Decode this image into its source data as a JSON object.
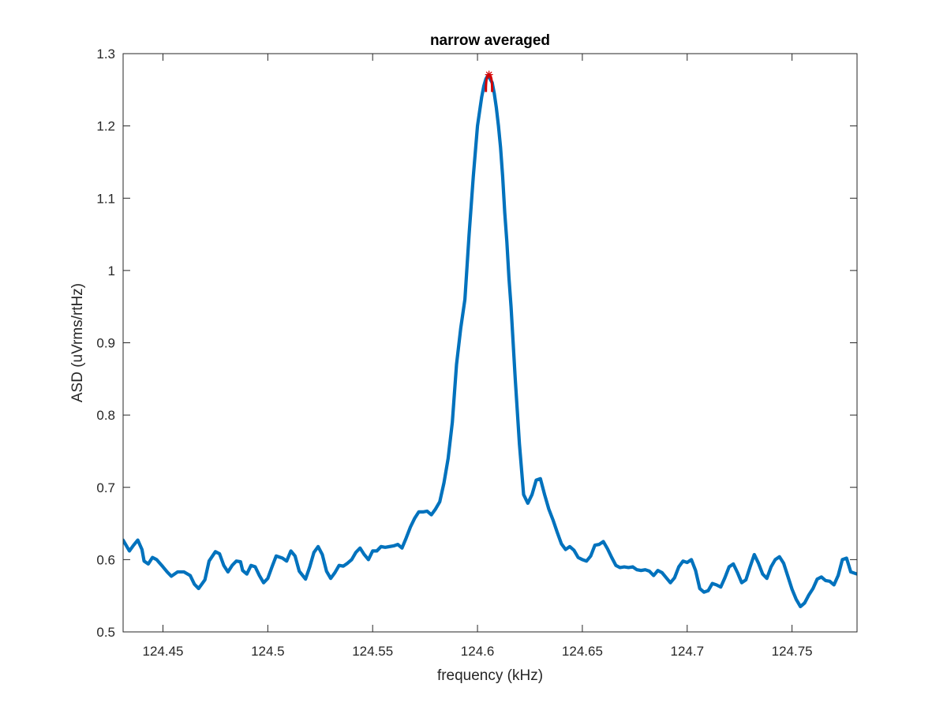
{
  "chart_data": {
    "type": "line",
    "title": "narrow averaged",
    "xlabel": "frequency (kHz)",
    "ylabel": "ASD (uVrms/rtHz)",
    "xlim": [
      124.431,
      124.781
    ],
    "ylim": [
      0.5,
      1.3
    ],
    "xticks": [
      124.45,
      124.5,
      124.55,
      124.6,
      124.65,
      124.7,
      124.75
    ],
    "xtick_labels": [
      "124.45",
      "124.5",
      "124.55",
      "124.6",
      "124.65",
      "124.7",
      "124.75"
    ],
    "yticks": [
      0.5,
      0.6,
      0.7,
      0.8,
      0.9,
      1.0,
      1.1,
      1.2,
      1.3
    ],
    "ytick_labels": [
      "0.5",
      "0.6",
      "0.7",
      "0.8",
      "0.9",
      "1",
      "1.1",
      "1.2",
      "1.3"
    ],
    "grid": false,
    "series": [
      {
        "color": "#0072BD",
        "x": [
          124.431,
          124.434,
          124.436,
          124.438,
          124.44,
          124.441,
          124.443,
          124.445,
          124.447,
          124.45,
          124.452,
          124.454,
          124.457,
          124.459,
          124.46,
          124.463,
          124.465,
          124.467,
          124.47,
          124.472,
          124.475,
          124.477,
          124.479,
          124.481,
          124.483,
          124.485,
          124.487,
          124.488,
          124.49,
          124.492,
          124.494,
          124.496,
          124.498,
          124.5,
          124.502,
          124.504,
          124.507,
          124.509,
          124.511,
          124.513,
          124.515,
          124.518,
          124.52,
          124.522,
          124.524,
          124.526,
          124.528,
          124.53,
          124.532,
          124.534,
          124.536,
          124.538,
          124.54,
          124.542,
          124.544,
          124.546,
          124.548,
          124.55,
          124.552,
          124.554,
          124.556,
          124.558,
          124.56,
          124.562,
          124.564,
          124.566,
          124.568,
          124.57,
          124.572,
          124.574,
          124.576,
          124.578,
          124.58,
          124.582,
          124.584,
          124.586,
          124.588,
          124.59,
          124.592,
          124.594,
          124.596,
          124.598,
          124.6,
          124.601,
          124.602,
          124.603,
          124.604,
          124.605,
          124.606,
          124.607,
          124.608,
          124.609,
          124.61,
          124.611,
          124.612,
          124.613,
          124.614,
          124.615,
          124.616,
          124.618,
          124.62,
          124.622,
          124.624,
          124.626,
          124.628,
          124.63,
          124.632,
          124.634,
          124.636,
          124.638,
          124.64,
          124.642,
          124.644,
          124.646,
          124.648,
          124.65,
          124.652,
          124.654,
          124.656,
          124.658,
          124.66,
          124.662,
          124.664,
          124.666,
          124.668,
          124.67,
          124.672,
          124.674,
          124.676,
          124.678,
          124.68,
          124.682,
          124.684,
          124.686,
          124.688,
          124.69,
          124.692,
          124.694,
          124.696,
          124.698,
          124.7,
          124.702,
          124.704,
          124.706,
          124.708,
          124.71,
          124.712,
          124.714,
          124.716,
          124.718,
          124.72,
          124.722,
          124.724,
          124.726,
          124.728,
          124.73,
          124.732,
          124.734,
          124.736,
          124.738,
          124.74,
          124.742,
          124.744,
          124.746,
          124.748,
          124.75,
          124.752,
          124.754,
          124.756,
          124.758,
          124.76,
          124.762,
          124.764,
          124.766,
          124.768,
          124.77,
          124.772,
          124.774,
          124.776,
          124.778,
          124.781
        ],
        "y": [
          0.627,
          0.612,
          0.62,
          0.627,
          0.614,
          0.598,
          0.594,
          0.603,
          0.6,
          0.59,
          0.583,
          0.577,
          0.583,
          0.583,
          0.583,
          0.578,
          0.566,
          0.56,
          0.572,
          0.598,
          0.611,
          0.608,
          0.592,
          0.583,
          0.592,
          0.598,
          0.597,
          0.585,
          0.58,
          0.592,
          0.59,
          0.578,
          0.568,
          0.574,
          0.59,
          0.605,
          0.602,
          0.598,
          0.612,
          0.605,
          0.584,
          0.573,
          0.59,
          0.61,
          0.618,
          0.607,
          0.584,
          0.574,
          0.582,
          0.592,
          0.591,
          0.595,
          0.6,
          0.61,
          0.616,
          0.607,
          0.6,
          0.612,
          0.612,
          0.618,
          0.617,
          0.618,
          0.619,
          0.621,
          0.616,
          0.63,
          0.645,
          0.657,
          0.666,
          0.666,
          0.667,
          0.662,
          0.67,
          0.68,
          0.706,
          0.74,
          0.79,
          0.87,
          0.92,
          0.96,
          1.05,
          1.13,
          1.2,
          1.22,
          1.24,
          1.255,
          1.265,
          1.27,
          1.265,
          1.26,
          1.245,
          1.225,
          1.2,
          1.17,
          1.13,
          1.08,
          1.04,
          0.99,
          0.95,
          0.85,
          0.76,
          0.69,
          0.678,
          0.69,
          0.71,
          0.712,
          0.69,
          0.67,
          0.655,
          0.638,
          0.622,
          0.614,
          0.618,
          0.613,
          0.603,
          0.6,
          0.598,
          0.605,
          0.62,
          0.621,
          0.625,
          0.615,
          0.603,
          0.592,
          0.589,
          0.59,
          0.589,
          0.59,
          0.586,
          0.585,
          0.586,
          0.584,
          0.578,
          0.585,
          0.582,
          0.575,
          0.568,
          0.575,
          0.59,
          0.598,
          0.596,
          0.6,
          0.585,
          0.56,
          0.555,
          0.557,
          0.567,
          0.565,
          0.562,
          0.575,
          0.59,
          0.594,
          0.582,
          0.568,
          0.572,
          0.59,
          0.607,
          0.595,
          0.58,
          0.574,
          0.59,
          0.6,
          0.604,
          0.595,
          0.577,
          0.559,
          0.545,
          0.535,
          0.54,
          0.551,
          0.56,
          0.573,
          0.576,
          0.571,
          0.57,
          0.565,
          0.578,
          0.6,
          0.602,
          0.583,
          0.58
        ]
      }
    ],
    "peak_marker": {
      "x": 124.6055,
      "y": 1.271,
      "color": "#D40000"
    }
  }
}
